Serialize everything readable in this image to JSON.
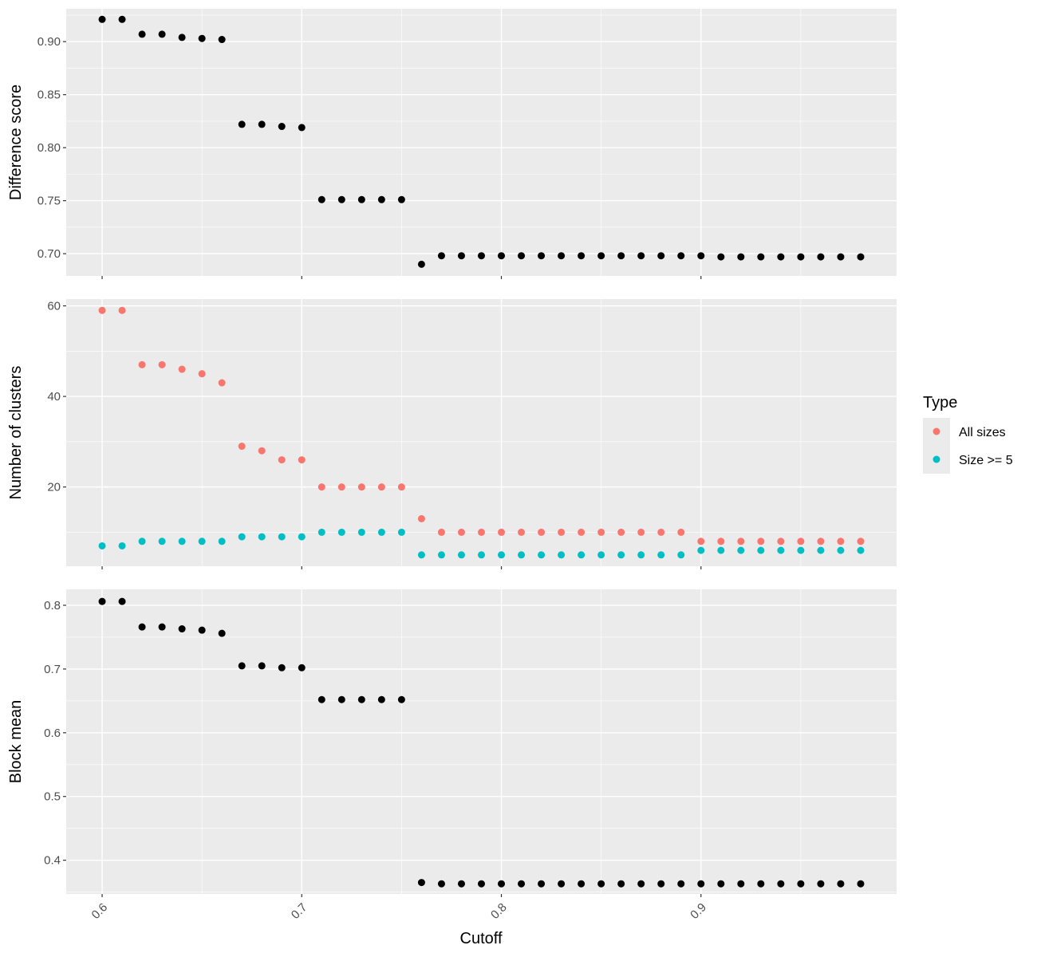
{
  "chart_data": {
    "type": "scatter",
    "xlabel": "Cutoff",
    "x": [
      0.6,
      0.61,
      0.62,
      0.63,
      0.64,
      0.65,
      0.66,
      0.67,
      0.68,
      0.69,
      0.7,
      0.71,
      0.72,
      0.73,
      0.74,
      0.75,
      0.76,
      0.77,
      0.78,
      0.79,
      0.8,
      0.81,
      0.82,
      0.83,
      0.84,
      0.85,
      0.86,
      0.87,
      0.88,
      0.89,
      0.9,
      0.91,
      0.92,
      0.93,
      0.94,
      0.95,
      0.96,
      0.97,
      0.98
    ],
    "xlim": [
      0.582,
      0.998
    ],
    "xticks": [
      0.6,
      0.7,
      0.8,
      0.9
    ],
    "xtick_labels": [
      "0.6",
      "0.7",
      "0.8",
      "0.9"
    ],
    "grid": true,
    "legend": {
      "title": "Type",
      "position": "right",
      "entries": [
        {
          "label": "All sizes",
          "color": "#F8766D"
        },
        {
          "label": "Size >= 5",
          "color": "#00BFC4"
        }
      ]
    },
    "panels": [
      {
        "ylabel": "Difference score",
        "ylim": [
          0.679,
          0.931
        ],
        "yticks": [
          0.7,
          0.75,
          0.8,
          0.85,
          0.9
        ],
        "ytick_labels": [
          "0.70",
          "0.75",
          "0.80",
          "0.85",
          "0.90"
        ],
        "series": [
          {
            "color": "#000000",
            "values": [
              0.921,
              0.921,
              0.907,
              0.907,
              0.904,
              0.903,
              0.902,
              0.822,
              0.822,
              0.82,
              0.819,
              0.751,
              0.751,
              0.751,
              0.751,
              0.751,
              0.69,
              0.698,
              0.698,
              0.698,
              0.698,
              0.698,
              0.698,
              0.698,
              0.698,
              0.698,
              0.698,
              0.698,
              0.698,
              0.698,
              0.698,
              0.697,
              0.697,
              0.697,
              0.697,
              0.697,
              0.697,
              0.697,
              0.697
            ]
          }
        ]
      },
      {
        "ylabel": "Number of clusters",
        "ylim": [
          2.5,
          61.5
        ],
        "yticks": [
          20,
          40,
          60
        ],
        "ytick_labels": [
          "20",
          "40",
          "60"
        ],
        "series": [
          {
            "name": "All sizes",
            "color": "#F8766D",
            "values": [
              59,
              59,
              47,
              47,
              46,
              45,
              43,
              29,
              28,
              26,
              26,
              20,
              20,
              20,
              20,
              20,
              13,
              10,
              10,
              10,
              10,
              10,
              10,
              10,
              10,
              10,
              10,
              10,
              10,
              10,
              8,
              8,
              8,
              8,
              8,
              8,
              8,
              8,
              8
            ]
          },
          {
            "name": "Size >= 5",
            "color": "#00BFC4",
            "values": [
              7,
              7,
              8,
              8,
              8,
              8,
              8,
              9,
              9,
              9,
              9,
              10,
              10,
              10,
              10,
              10,
              5,
              5,
              5,
              5,
              5,
              5,
              5,
              5,
              5,
              5,
              5,
              5,
              5,
              5,
              6,
              6,
              6,
              6,
              6,
              6,
              6,
              6,
              6
            ]
          }
        ]
      },
      {
        "ylabel": "Block mean",
        "ylim": [
          0.347,
          0.825
        ],
        "yticks": [
          0.4,
          0.5,
          0.6,
          0.7,
          0.8
        ],
        "ytick_labels": [
          "0.4",
          "0.5",
          "0.6",
          "0.7",
          "0.8"
        ],
        "series": [
          {
            "color": "#000000",
            "values": [
              0.806,
              0.806,
              0.766,
              0.766,
              0.763,
              0.761,
              0.756,
              0.705,
              0.705,
              0.702,
              0.702,
              0.652,
              0.652,
              0.652,
              0.652,
              0.652,
              0.365,
              0.363,
              0.363,
              0.363,
              0.363,
              0.363,
              0.363,
              0.363,
              0.363,
              0.363,
              0.363,
              0.363,
              0.363,
              0.363,
              0.363,
              0.363,
              0.363,
              0.363,
              0.363,
              0.363,
              0.363,
              0.363,
              0.363
            ]
          }
        ]
      }
    ]
  }
}
